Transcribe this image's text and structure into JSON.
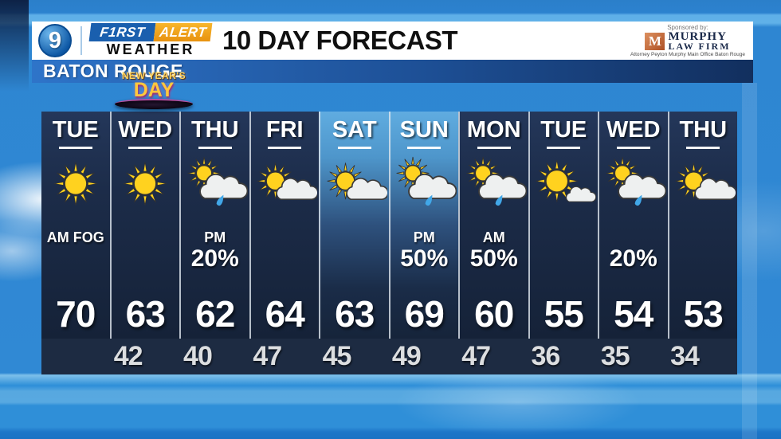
{
  "header": {
    "station_number": "9",
    "brand_first": "F1RST",
    "brand_alert": "ALERT",
    "brand_weather": "WEATHER",
    "title": "10 DAY FORECAST",
    "location": "BATON ROUGE"
  },
  "sponsor": {
    "label": "Sponsored by:",
    "logo_letter": "M",
    "name_line1": "MURPHY",
    "name_line2": "LAW FIRM",
    "tagline": "Attorney Peyton Murphy Main Office Baton Rouge"
  },
  "holiday_banner": {
    "line1": "NEW YEAR'S",
    "line2": "DAY"
  },
  "forecast": {
    "days": [
      {
        "day": "TUE",
        "icon": "sunny",
        "condition_top": "AM FOG",
        "condition_bottom": "",
        "high": "70",
        "weekend": false
      },
      {
        "day": "WED",
        "icon": "sunny",
        "condition_top": "",
        "condition_bottom": "",
        "high": "63",
        "weekend": false
      },
      {
        "day": "THU",
        "icon": "shower",
        "condition_top": "PM",
        "condition_bottom": "20%",
        "high": "62",
        "weekend": false
      },
      {
        "day": "FRI",
        "icon": "partly-cloudy",
        "condition_top": "",
        "condition_bottom": "",
        "high": "64",
        "weekend": false
      },
      {
        "day": "SAT",
        "icon": "partly-cloudy",
        "condition_top": "",
        "condition_bottom": "",
        "high": "63",
        "weekend": true
      },
      {
        "day": "SUN",
        "icon": "shower",
        "condition_top": "PM",
        "condition_bottom": "50%",
        "high": "69",
        "weekend": true
      },
      {
        "day": "MON",
        "icon": "shower",
        "condition_top": "AM",
        "condition_bottom": "50%",
        "high": "60",
        "weekend": false
      },
      {
        "day": "TUE",
        "icon": "mostly-sunny",
        "condition_top": "",
        "condition_bottom": "",
        "high": "55",
        "weekend": false
      },
      {
        "day": "WED",
        "icon": "shower",
        "condition_top": "",
        "condition_bottom": "20%",
        "high": "54",
        "weekend": false
      },
      {
        "day": "THU",
        "icon": "partly-cloudy",
        "condition_top": "",
        "condition_bottom": "",
        "high": "53",
        "weekend": false
      }
    ],
    "lows": [
      "42",
      "40",
      "47",
      "45",
      "49",
      "47",
      "36",
      "35",
      "34"
    ]
  },
  "colors": {
    "sky_blue": "#2f8ad6",
    "panel_navy": "#1b2940",
    "weekend_blue": "#60ace0",
    "sun_yellow": "#ffd21f",
    "rain_blue": "#41a7e8",
    "alert_orange": "#f0a21c",
    "brand_blue": "#1a5fae",
    "murphy_orange": "#c2602f",
    "murphy_navy": "#1b2a4a"
  }
}
